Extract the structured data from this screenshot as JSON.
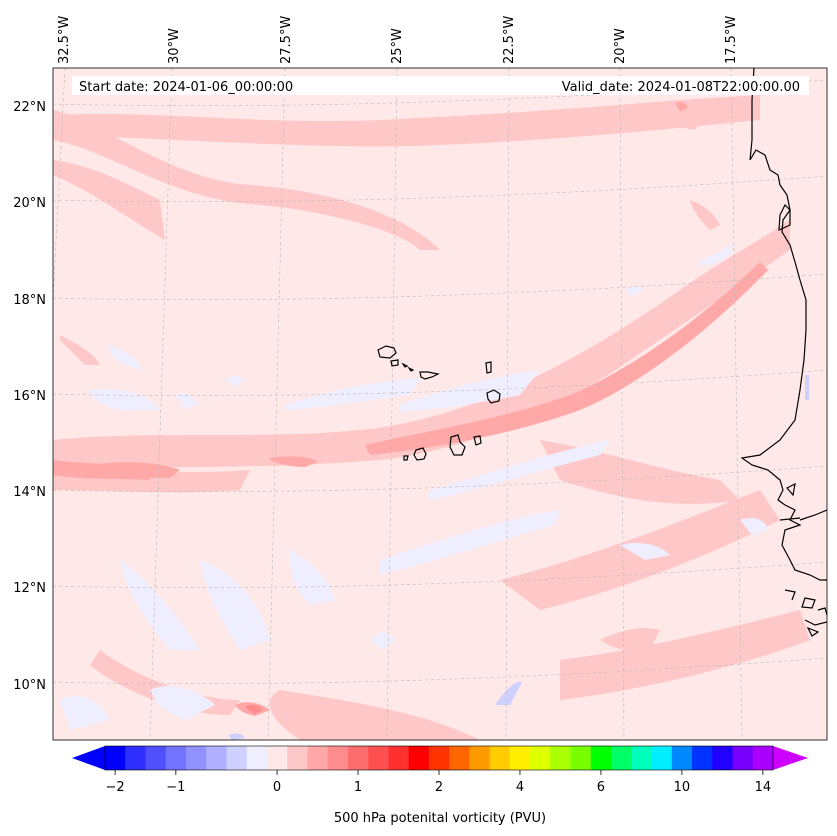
{
  "map": {
    "start_date_text": "Start date: 2024-01-06_00:00:00",
    "valid_date_text": "Valid_date: 2024-01-08T22:00:00.00",
    "lon_labels": [
      "32.5°W",
      "30°W",
      "27.5°W",
      "25°W",
      "22.5°W",
      "20°W",
      "17.5°W"
    ],
    "lat_labels": [
      "22°N",
      "20°N",
      "18°N",
      "16°N",
      "14°N",
      "12°N",
      "10°N"
    ],
    "background_color": "#ffe8e8",
    "coastline_color": "#000000"
  },
  "colorbar": {
    "label": "500 hPa potenital vorticity (PVU)",
    "ticks": [
      "-2",
      "-1",
      "0",
      "1",
      "2",
      "4",
      "6",
      "10",
      "14"
    ],
    "colors": [
      "#0000ff",
      "#2e2eff",
      "#5050ff",
      "#7373ff",
      "#9191ff",
      "#b0b0ff",
      "#d0d0ff",
      "#eeeeff",
      "#ffe8e8",
      "#ffc8c8",
      "#ffa8a8",
      "#ff8c8c",
      "#ff6e6e",
      "#ff5050",
      "#ff3030",
      "#ff0000",
      "#ff3300",
      "#ff6600",
      "#ff9900",
      "#ffcc00",
      "#ffee00",
      "#ddff00",
      "#aaff00",
      "#77ff00",
      "#00ff00",
      "#00ff66",
      "#00ffbb",
      "#00eeff",
      "#0088ff",
      "#0033ff",
      "#2200ff",
      "#7700ff",
      "#aa00ff"
    ],
    "under_color": "#0000ff",
    "over_color": "#cc00ff"
  }
}
